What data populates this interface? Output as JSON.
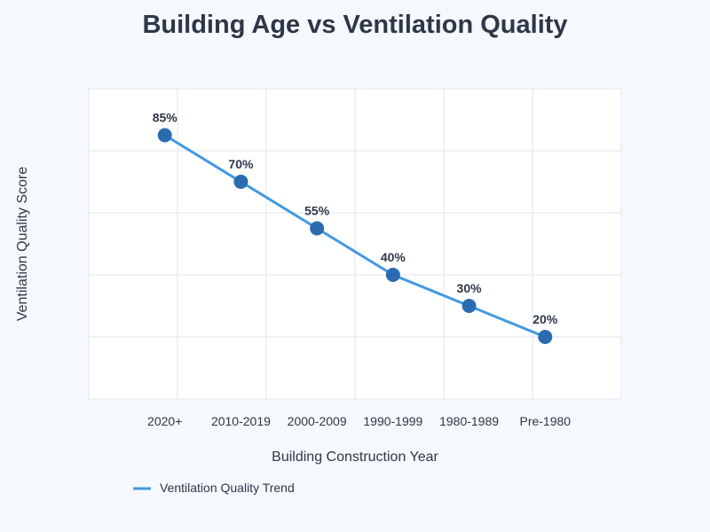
{
  "chart_data": {
    "type": "line",
    "title": "Building Age vs Ventilation Quality",
    "xlabel": "Building Construction Year",
    "ylabel": "Ventilation Quality Score",
    "categories": [
      "2020+",
      "2010-2019",
      "2000-2009",
      "1990-1999",
      "1980-1989",
      "Pre-1980"
    ],
    "series": [
      {
        "name": "Ventilation Quality Trend",
        "values": [
          85,
          70,
          55,
          40,
          30,
          20
        ],
        "labels": [
          "85%",
          "70%",
          "55%",
          "40%",
          "30%",
          "20%"
        ]
      }
    ],
    "ylim": [
      0,
      100
    ],
    "grid": true,
    "legend": "bottom-left",
    "colors": {
      "line": "#4299e1",
      "point": "#2b6cb0",
      "text": "#2d3748",
      "grid": "#e9edf3"
    }
  }
}
